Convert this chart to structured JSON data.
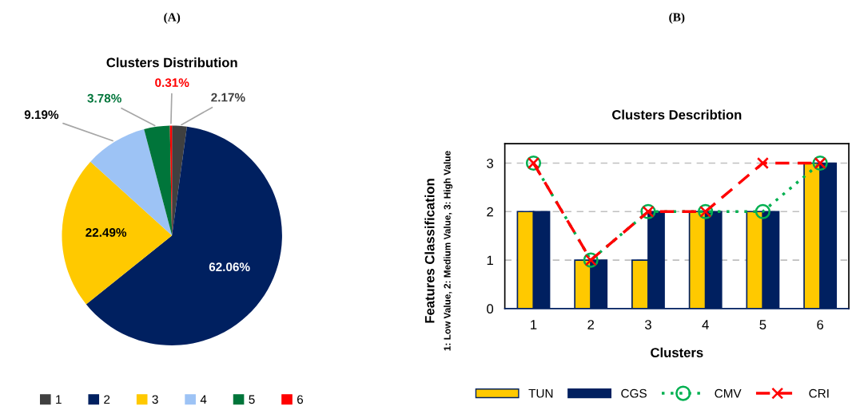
{
  "chart_data": [
    {
      "type": "pie",
      "title": "Clusters Distribution",
      "annotations": [
        "(A)"
      ],
      "categories": [
        "1",
        "2",
        "3",
        "4",
        "5",
        "6"
      ],
      "values": [
        2.17,
        62.06,
        22.49,
        9.19,
        3.78,
        0.31
      ],
      "value_labels": [
        "2.17%",
        "62.06%",
        "22.49%",
        "9.19%",
        "3.78%",
        "0.31%"
      ],
      "colors": [
        "#404040",
        "#002060",
        "#ffc900",
        "#9dc3f5",
        "#00753a",
        "#ff0000"
      ],
      "legend": "bottom"
    },
    {
      "type": "bar",
      "title": "Clusters Describtion",
      "annotations": [
        "(B)"
      ],
      "xlabel": "Clusters",
      "ylabel": "Features Classification\n1: Low Value, 2: Medium Value, 3: High Value",
      "categories": [
        "1",
        "2",
        "3",
        "4",
        "5",
        "6"
      ],
      "series": [
        {
          "name": "TUN",
          "color": "#ffc900",
          "values": [
            2,
            1,
            1,
            2,
            2,
            3
          ]
        },
        {
          "name": "CGS",
          "color": "#002060",
          "values": [
            2,
            1,
            2,
            2,
            2,
            3
          ]
        },
        {
          "name": "CMV",
          "type": "line",
          "color": "#00b050",
          "marker": "circle",
          "line_style": "dotted",
          "values": [
            3,
            1,
            2,
            2,
            2,
            3
          ]
        },
        {
          "name": "CRI",
          "type": "line",
          "color": "#ff0000",
          "marker": "cross",
          "line_style": "dashed",
          "values": [
            3,
            1,
            2,
            2,
            3,
            3
          ]
        }
      ],
      "ylim": [
        0,
        3.4
      ],
      "yticks": [
        0,
        1,
        2,
        3
      ],
      "grid": "y",
      "legend": "bottom"
    }
  ]
}
